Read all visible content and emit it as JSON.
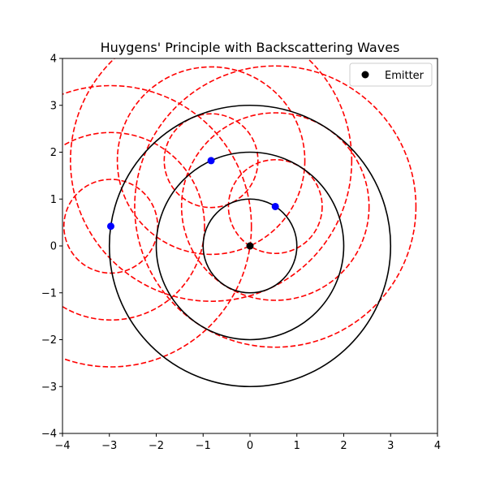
{
  "chart_data": {
    "type": "scatter",
    "title": "Huygens' Principle with Backscattering Waves",
    "xlabel": "",
    "ylabel": "",
    "xlim": [
      -4,
      4
    ],
    "ylim": [
      -4,
      4
    ],
    "x_ticks": [
      -4,
      -3,
      -2,
      -1,
      0,
      1,
      2,
      3,
      4
    ],
    "y_ticks": [
      -4,
      -3,
      -2,
      -1,
      0,
      1,
      2,
      3,
      4
    ],
    "x_tick_labels": [
      "−4",
      "−3",
      "−2",
      "−1",
      "0",
      "1",
      "2",
      "3",
      "4"
    ],
    "y_tick_labels": [
      "−4",
      "−3",
      "−2",
      "−1",
      "0",
      "1",
      "2",
      "3",
      "4"
    ],
    "grid": false,
    "aspect": "equal",
    "legend": {
      "position": "top-right",
      "entries": [
        {
          "label": "Emitter",
          "marker": "circle",
          "color": "#000000"
        }
      ]
    },
    "emitter": {
      "label": "Emitter",
      "x": 0,
      "y": 0,
      "color": "#000000"
    },
    "wavefronts": {
      "center": [
        0,
        0
      ],
      "radii": [
        1,
        2,
        3
      ],
      "color": "#000000",
      "style": "solid"
    },
    "scatter_points": {
      "color": "#0000ff",
      "points": [
        {
          "x": 0.54,
          "y": 0.84
        },
        {
          "x": -0.83,
          "y": 1.82
        },
        {
          "x": -2.97,
          "y": 0.42
        }
      ]
    },
    "secondary_wavelets": {
      "color": "#ff0000",
      "style": "dashed",
      "radii": [
        1,
        2,
        3
      ],
      "centers": [
        {
          "x": 0.54,
          "y": 0.84
        },
        {
          "x": -0.83,
          "y": 1.82
        },
        {
          "x": -2.97,
          "y": 0.42
        }
      ]
    }
  }
}
